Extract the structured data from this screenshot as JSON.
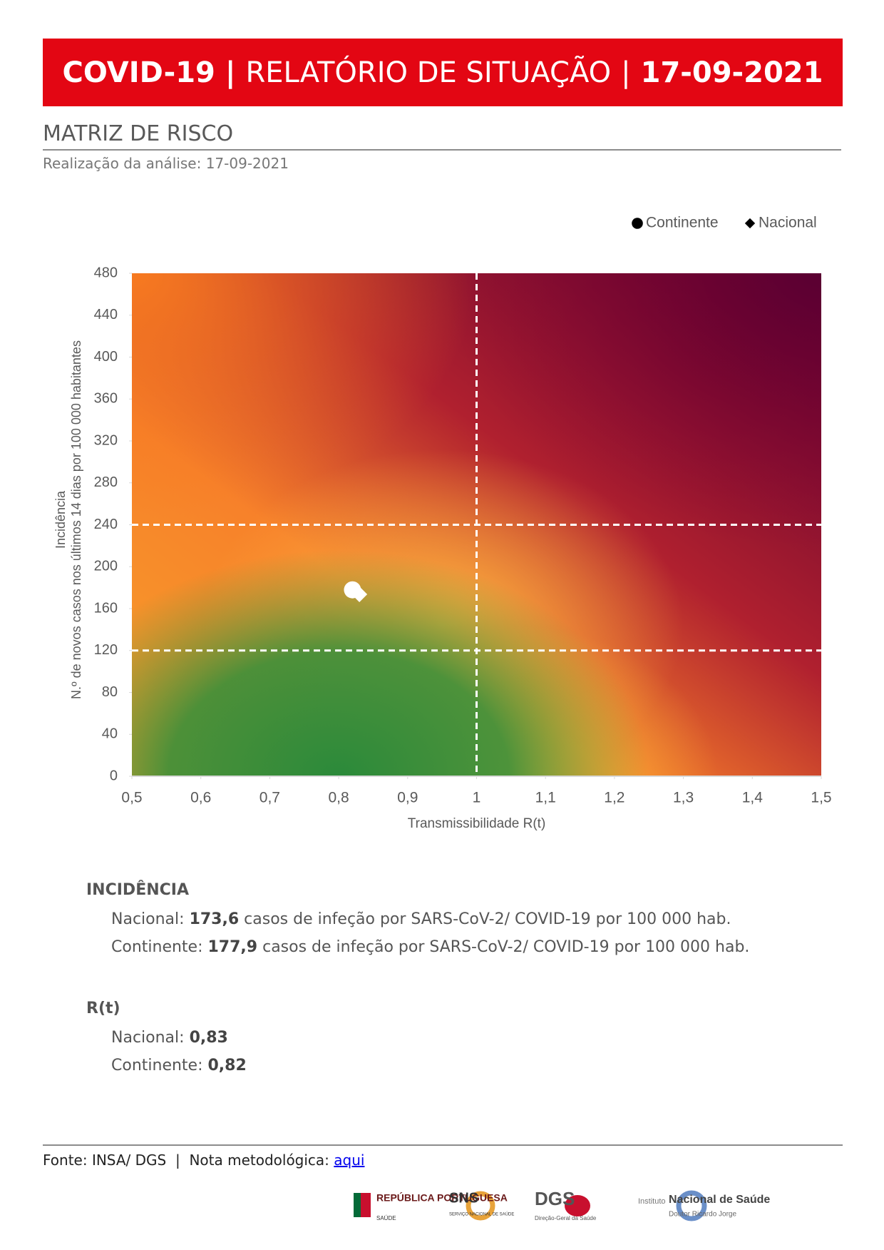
{
  "header": {
    "left": "COVID-19",
    "separator": "|",
    "middle": "RELATÓRIO DE SITUAÇÃO",
    "date": "17-09-2021"
  },
  "section": {
    "title": "MATRIZ DE RISCO",
    "subtitle": "Realização da análise: 17-09-2021"
  },
  "chart_data": {
    "type": "scatter",
    "x_label": "Transmissibilidade R(t)",
    "y_label": [
      "Incidência",
      "N.º de novos casos nos últimos 14 dias por 100 000 habitantes"
    ],
    "xlim": [
      0.5,
      1.5
    ],
    "xticks": [
      {
        "value": 0.5,
        "label": "0,5"
      },
      {
        "value": 0.6,
        "label": "0,6"
      },
      {
        "value": 0.7,
        "label": "0,7"
      },
      {
        "value": 0.8,
        "label": "0,8"
      },
      {
        "value": 0.9,
        "label": "0,9"
      },
      1,
      {
        "value": 1.1,
        "label": "1,1"
      },
      {
        "value": 1.2,
        "label": "1,2"
      },
      {
        "value": 1.3,
        "label": "1,3"
      },
      {
        "value": 1.4,
        "label": "1,4"
      },
      {
        "value": 1.5,
        "label": "1,5"
      }
    ],
    "ylim": [
      0,
      480
    ],
    "yticks": [
      0,
      40,
      80,
      120,
      160,
      200,
      240,
      280,
      320,
      360,
      400,
      440,
      480
    ],
    "reference_lines": {
      "x": [
        1
      ],
      "y": [
        120,
        240
      ]
    },
    "series": [
      {
        "name": "Continente",
        "marker": "circle",
        "color": "#ffffff",
        "legend_color": "#000000",
        "x": [
          0.82
        ],
        "values": [
          177.9
        ]
      },
      {
        "name": "Nacional",
        "marker": "diamond",
        "color": "#ffffff",
        "legend_color": "#000000",
        "x": [
          0.83
        ],
        "values": [
          173.6
        ]
      }
    ]
  },
  "incidence": {
    "title": "INCIDÊNCIA",
    "rows": [
      {
        "name": "Nacional:",
        "value": "173,6",
        "text": "casos de infeção por SARS-CoV-2/ COVID-19 por 100 000 hab."
      },
      {
        "name": "Continente:",
        "value": "177,9",
        "text": "casos de infeção por SARS-CoV-2/ COVID-19 por 100 000 hab."
      }
    ]
  },
  "rt": {
    "title": "R(t)",
    "rows": [
      {
        "name": "Nacional:",
        "value": "0,83"
      },
      {
        "name": "Continente:",
        "value": "0,82"
      }
    ]
  },
  "footer": {
    "source": "Fonte: INSA/ DGS",
    "separator": "|",
    "note": "Nota metodológica:",
    "link": "aqui"
  },
  "logos": [
    "REPÚBLICA PORTUGUESA",
    "SAÚDE",
    "SNS",
    "SERVIÇO NACIONAL DE SAÚDE",
    "DGS",
    "Direção-Geral da Saúde",
    "Instituto",
    "Nacional de Saúde",
    "Doutor Ricardo Jorge"
  ]
}
